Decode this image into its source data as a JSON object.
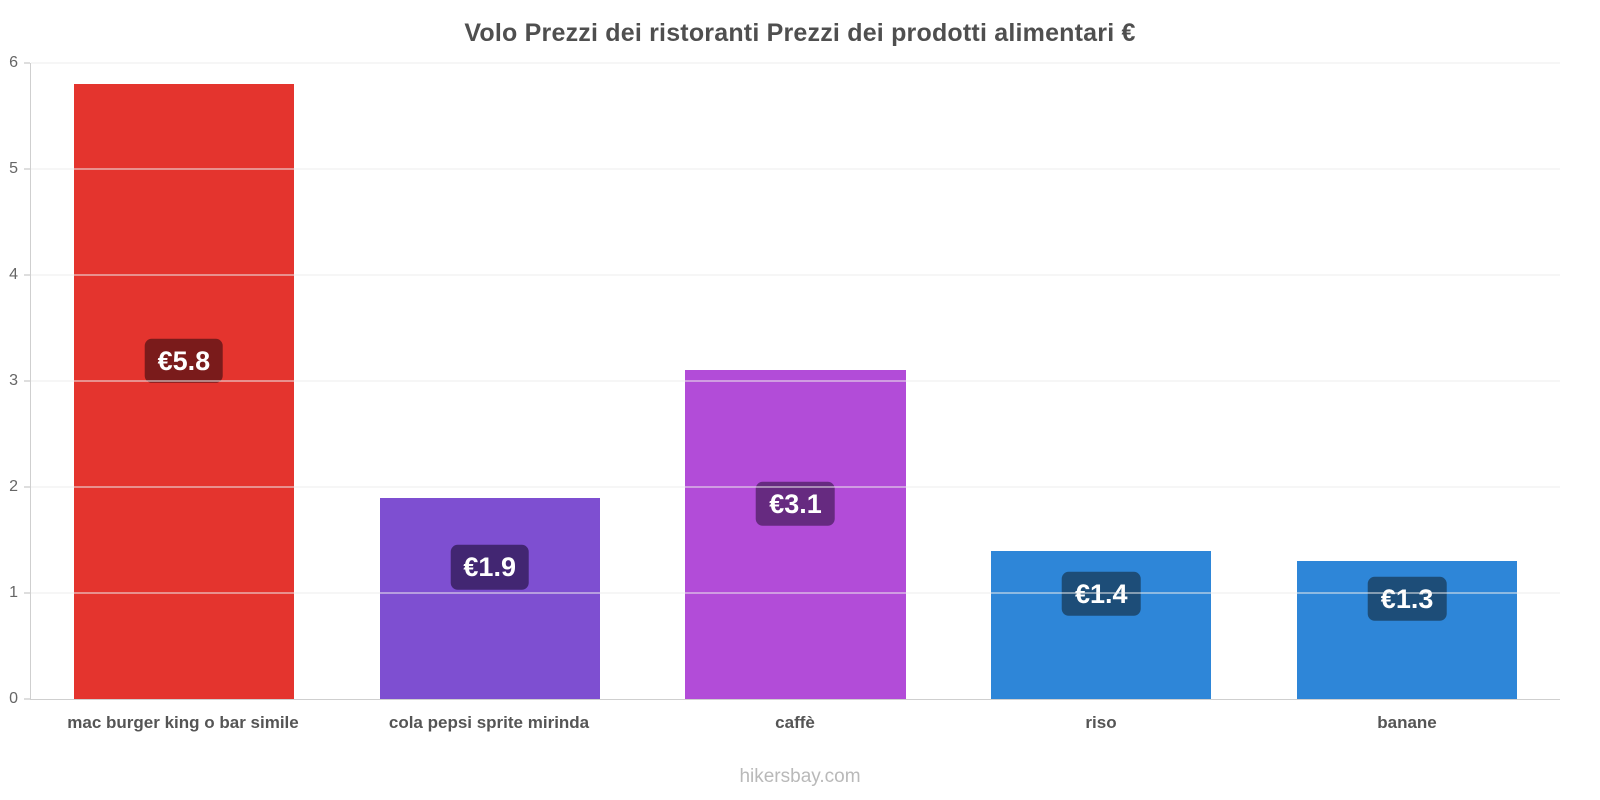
{
  "header": {
    "title": "Volo Prezzi dei ristoranti Prezzi dei prodotti alimentari €"
  },
  "footer": {
    "watermark": "hikersbay.com"
  },
  "chart_data": {
    "type": "bar",
    "title": "Volo Prezzi dei ristoranti Prezzi dei prodotti alimentari €",
    "categories": [
      "mac burger king o bar simile",
      "cola pepsi sprite mirinda",
      "caffè",
      "riso",
      "banane"
    ],
    "values": [
      5.8,
      1.9,
      3.1,
      1.4,
      1.3
    ],
    "value_labels": [
      "€5.8",
      "€1.9",
      "€3.1",
      "€1.4",
      "€1.3"
    ],
    "bar_colors": [
      "#e4342e",
      "#7e4fd1",
      "#b24cd8",
      "#2e86d8",
      "#2e86d8"
    ],
    "badge_colors": [
      "#7a1b1b",
      "#422672",
      "#662a80",
      "#1d4d78",
      "#1d4d78"
    ],
    "xlabel": "",
    "ylabel": "",
    "ylim": [
      0,
      6
    ],
    "yticks": [
      0,
      1,
      2,
      3,
      4,
      5,
      6
    ],
    "grid": true,
    "legend": false,
    "currency": "€"
  }
}
